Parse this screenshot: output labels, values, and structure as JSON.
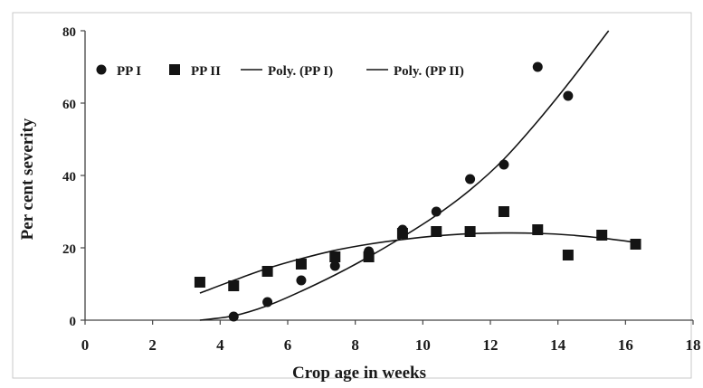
{
  "chart_data": {
    "type": "scatter",
    "title": "",
    "xlabel": "Crop age in  weeks",
    "ylabel": "Per cent severity",
    "xlim": [
      0,
      18
    ],
    "ylim": [
      0,
      80
    ],
    "x_ticks": [
      "0",
      "2",
      "4",
      "6",
      "8",
      "10",
      "12",
      "14",
      "16",
      "18"
    ],
    "y_ticks": [
      "0",
      "20",
      "40",
      "60",
      "80"
    ],
    "grid": false,
    "legend_position": "top",
    "series": [
      {
        "name": "PP I",
        "marker": "circle",
        "color": "#141414",
        "points": [
          {
            "x": 4.4,
            "y": 1
          },
          {
            "x": 5.4,
            "y": 5
          },
          {
            "x": 6.4,
            "y": 11
          },
          {
            "x": 7.4,
            "y": 15
          },
          {
            "x": 8.4,
            "y": 19
          },
          {
            "x": 9.4,
            "y": 25
          },
          {
            "x": 10.4,
            "y": 30
          },
          {
            "x": 11.4,
            "y": 39
          },
          {
            "x": 12.4,
            "y": 43
          },
          {
            "x": 13.4,
            "y": 70
          },
          {
            "x": 14.3,
            "y": 62
          }
        ]
      },
      {
        "name": "PP II",
        "marker": "square",
        "color": "#141414",
        "points": [
          {
            "x": 3.4,
            "y": 10.5
          },
          {
            "x": 4.4,
            "y": 9.5
          },
          {
            "x": 5.4,
            "y": 13.5
          },
          {
            "x": 6.4,
            "y": 15.5
          },
          {
            "x": 7.4,
            "y": 17.5
          },
          {
            "x": 8.4,
            "y": 17.5
          },
          {
            "x": 9.4,
            "y": 24
          },
          {
            "x": 10.4,
            "y": 24.5
          },
          {
            "x": 11.4,
            "y": 24.5
          },
          {
            "x": 12.4,
            "y": 30
          },
          {
            "x": 13.4,
            "y": 25
          },
          {
            "x": 14.3,
            "y": 18
          },
          {
            "x": 15.3,
            "y": 23.5
          },
          {
            "x": 16.3,
            "y": 21
          }
        ]
      },
      {
        "name": "Poly. (PP I)",
        "type": "trendline",
        "color": "#141414",
        "x_range": [
          3.4,
          15.5
        ],
        "points": [
          {
            "x": 3.4,
            "y": 0
          },
          {
            "x": 4.4,
            "y": 1.2
          },
          {
            "x": 5.4,
            "y": 4
          },
          {
            "x": 6.4,
            "y": 8
          },
          {
            "x": 7.4,
            "y": 12.5
          },
          {
            "x": 8.4,
            "y": 17.5
          },
          {
            "x": 9.4,
            "y": 23
          },
          {
            "x": 10.4,
            "y": 29
          },
          {
            "x": 11.4,
            "y": 36
          },
          {
            "x": 12.4,
            "y": 44.5
          },
          {
            "x": 13.4,
            "y": 55
          },
          {
            "x": 14.4,
            "y": 66.5
          },
          {
            "x": 15.5,
            "y": 80
          }
        ]
      },
      {
        "name": "Poly. (PP II)",
        "type": "trendline",
        "color": "#141414",
        "x_range": [
          3.4,
          16.3
        ],
        "points": [
          {
            "x": 3.4,
            "y": 7.5
          },
          {
            "x": 4.4,
            "y": 11
          },
          {
            "x": 5.4,
            "y": 14.3
          },
          {
            "x": 6.4,
            "y": 17
          },
          {
            "x": 7.4,
            "y": 19.3
          },
          {
            "x": 8.4,
            "y": 21
          },
          {
            "x": 9.4,
            "y": 22.3
          },
          {
            "x": 10.4,
            "y": 23.3
          },
          {
            "x": 11.4,
            "y": 23.9
          },
          {
            "x": 12.4,
            "y": 24.1
          },
          {
            "x": 13.4,
            "y": 24
          },
          {
            "x": 14.4,
            "y": 23.5
          },
          {
            "x": 15.3,
            "y": 22.7
          },
          {
            "x": 16.3,
            "y": 21.5
          }
        ]
      }
    ]
  }
}
